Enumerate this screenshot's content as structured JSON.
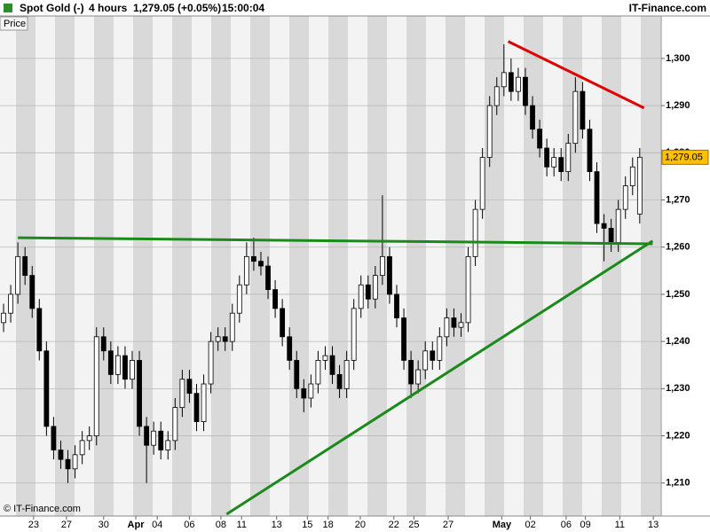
{
  "header": {
    "instrument": "Spot Gold (-)",
    "interval": "4 hours",
    "quote": "1,279.05 (+0.05%)",
    "time": "15:00:04",
    "site": "IT-Finance.com",
    "panel_label": "Price",
    "copyright": "© IT-Finance.com"
  },
  "chart_data": {
    "type": "candlestick",
    "open": [
      1244,
      1246,
      1250,
      1258,
      1254,
      1247,
      1238,
      1222,
      1217,
      1215,
      1213,
      1216,
      1219,
      1220,
      1241,
      1238,
      1233,
      1237,
      1232,
      1236,
      1222,
      1218,
      1221,
      1217,
      1219,
      1226,
      1232,
      1229,
      1223,
      1231,
      1240,
      1241,
      1240,
      1246,
      1252,
      1258,
      1257,
      1256,
      1251,
      1247,
      1241,
      1236,
      1230,
      1228,
      1231,
      1236,
      1237,
      1233,
      1230,
      1236,
      1247,
      1252,
      1249,
      1254,
      1258,
      1250,
      1245,
      1236,
      1231,
      1234,
      1238,
      1236,
      1241,
      1245,
      1243,
      1244,
      1258,
      1268,
      1279,
      1290,
      1294,
      1297,
      1293,
      1296,
      1290,
      1285,
      1281,
      1277,
      1279,
      1276,
      1282,
      1293,
      1285,
      1276,
      1265,
      1264,
      1261,
      1268,
      1273,
      1267
    ],
    "high": [
      1248,
      1252,
      1261,
      1260,
      1256,
      1249,
      1240,
      1224,
      1219,
      1217,
      1218,
      1221,
      1222,
      1243,
      1243,
      1240,
      1239,
      1239,
      1238,
      1238,
      1224,
      1223,
      1223,
      1221,
      1228,
      1234,
      1234,
      1231,
      1233,
      1242,
      1243,
      1243,
      1248,
      1254,
      1261,
      1262,
      1259,
      1258,
      1253,
      1249,
      1243,
      1238,
      1232,
      1233,
      1238,
      1239,
      1239,
      1235,
      1238,
      1249,
      1254,
      1254,
      1256,
      1271,
      1260,
      1252,
      1247,
      1238,
      1236,
      1240,
      1240,
      1243,
      1247,
      1247,
      1246,
      1260,
      1270,
      1281,
      1292,
      1296,
      1303,
      1300,
      1298,
      1298,
      1292,
      1287,
      1283,
      1281,
      1281,
      1284,
      1296,
      1295,
      1287,
      1278,
      1267,
      1266,
      1270,
      1275,
      1279,
      1281
    ],
    "low": [
      1242,
      1244,
      1248,
      1252,
      1245,
      1236,
      1220,
      1215,
      1213,
      1210,
      1211,
      1214,
      1217,
      1218,
      1236,
      1231,
      1231,
      1230,
      1230,
      1220,
      1210,
      1216,
      1215,
      1215,
      1217,
      1224,
      1227,
      1221,
      1221,
      1229,
      1238,
      1238,
      1238,
      1244,
      1250,
      1255,
      1254,
      1249,
      1245,
      1239,
      1234,
      1228,
      1225,
      1226,
      1229,
      1234,
      1231,
      1228,
      1228,
      1234,
      1245,
      1247,
      1247,
      1252,
      1248,
      1243,
      1234,
      1228,
      1229,
      1232,
      1234,
      1234,
      1239,
      1241,
      1241,
      1242,
      1256,
      1266,
      1277,
      1288,
      1292,
      1291,
      1291,
      1288,
      1283,
      1279,
      1275,
      1275,
      1274,
      1274,
      1280,
      1283,
      1274,
      1263,
      1257,
      1259,
      1259,
      1266,
      1271,
      1265
    ],
    "close": [
      1246,
      1250,
      1258,
      1254,
      1247,
      1238,
      1222,
      1217,
      1215,
      1213,
      1216,
      1219,
      1220,
      1241,
      1238,
      1233,
      1237,
      1232,
      1236,
      1222,
      1218,
      1221,
      1217,
      1219,
      1226,
      1232,
      1229,
      1223,
      1231,
      1240,
      1241,
      1240,
      1246,
      1252,
      1258,
      1257,
      1256,
      1251,
      1247,
      1241,
      1236,
      1230,
      1228,
      1231,
      1236,
      1237,
      1233,
      1230,
      1236,
      1247,
      1252,
      1249,
      1254,
      1258,
      1250,
      1245,
      1236,
      1231,
      1234,
      1238,
      1236,
      1241,
      1245,
      1243,
      1244,
      1258,
      1268,
      1279,
      1290,
      1294,
      1297,
      1293,
      1296,
      1290,
      1285,
      1281,
      1277,
      1279,
      1276,
      1282,
      1293,
      1285,
      1276,
      1265,
      1264,
      1261,
      1268,
      1273,
      1277,
      1279.05
    ],
    "up_color": "#ffffff",
    "down_color": "#000000",
    "last_label": "1,279.05",
    "last_color": "#ffc000",
    "xlim": [
      -0.5,
      92
    ],
    "xticks": [
      {
        "value": 4.2,
        "label": "23"
      },
      {
        "value": 8.8,
        "label": "27"
      },
      {
        "value": 14.0,
        "label": "30"
      },
      {
        "value": 18.5,
        "label": "Apr"
      },
      {
        "value": 21.5,
        "label": "04"
      },
      {
        "value": 26.0,
        "label": "06"
      },
      {
        "value": 30.4,
        "label": "08"
      },
      {
        "value": 33.3,
        "label": "11"
      },
      {
        "value": 38.2,
        "label": "13"
      },
      {
        "value": 42.5,
        "label": "15"
      },
      {
        "value": 45.4,
        "label": "18"
      },
      {
        "value": 49.9,
        "label": "20"
      },
      {
        "value": 54.6,
        "label": "22"
      },
      {
        "value": 57.4,
        "label": "25"
      },
      {
        "value": 62.2,
        "label": "27"
      },
      {
        "value": 69.7,
        "label": "May"
      },
      {
        "value": 73.7,
        "label": "02"
      },
      {
        "value": 78.7,
        "label": "06"
      },
      {
        "value": 81.4,
        "label": "09"
      },
      {
        "value": 86.2,
        "label": "11"
      },
      {
        "value": 90.9,
        "label": "13"
      }
    ],
    "ylim": [
      1203,
      1309
    ],
    "yticks": [
      {
        "value": 1210,
        "label": "1,210"
      },
      {
        "value": 1220,
        "label": "1,220"
      },
      {
        "value": 1230,
        "label": "1,230"
      },
      {
        "value": 1240,
        "label": "1,240"
      },
      {
        "value": 1250,
        "label": "1,250"
      },
      {
        "value": 1260,
        "label": "1,260"
      },
      {
        "value": 1270,
        "label": "1,270"
      },
      {
        "value": 1280,
        "label": "1,280"
      },
      {
        "value": 1290,
        "label": "1,290"
      },
      {
        "value": 1300,
        "label": "1,300"
      }
    ],
    "grid": true,
    "trendlines": [
      {
        "color": "#e00000",
        "x": [
          70.6,
          89.6
        ],
        "y": [
          1303.6,
          1289.5
        ]
      },
      {
        "color": "#1a8a1a",
        "x": [
          2.0,
          90.8
        ],
        "y": [
          1262.0,
          1260.7
        ]
      },
      {
        "color": "#1a8a1a",
        "x": [
          31.2,
          90.8
        ],
        "y": [
          1203.4,
          1261.3
        ]
      }
    ]
  }
}
